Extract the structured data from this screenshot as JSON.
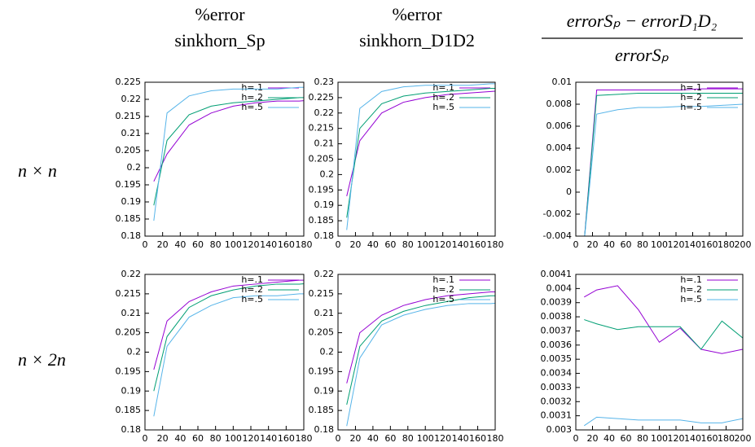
{
  "column_headers": [
    {
      "lines": [
        "%error",
        "sinkhorn_Sp"
      ]
    },
    {
      "lines": [
        "%error",
        "sinkhorn_D1D2"
      ]
    },
    {
      "numerator": "errorSₚ − errorD₁D₂",
      "denominator": "errorSₚ"
    }
  ],
  "row_labels": [
    "n × n",
    "n × 2n"
  ],
  "chart_data": [
    {
      "type": "line",
      "x": [
        10,
        25,
        50,
        75,
        100,
        125,
        150,
        175,
        200
      ],
      "xlim": [
        0,
        180
      ],
      "xticks": [
        0,
        20,
        40,
        60,
        80,
        100,
        120,
        140,
        160,
        180
      ],
      "ylim": [
        0.18,
        0.225
      ],
      "yticks": [
        0.18,
        0.185,
        0.19,
        0.195,
        0.2,
        0.205,
        0.21,
        0.215,
        0.22,
        0.225
      ],
      "legend": "top-right",
      "series": [
        {
          "name": "h=.1",
          "color": "#9400d3",
          "values": [
            0.196,
            0.204,
            0.2125,
            0.216,
            0.218,
            0.219,
            0.2195,
            0.2195,
            0.22
          ]
        },
        {
          "name": "h=.2",
          "color": "#009e73",
          "values": [
            0.189,
            0.208,
            0.2155,
            0.218,
            0.219,
            0.2195,
            0.22,
            0.2205,
            0.2205
          ]
        },
        {
          "name": "h=.5",
          "color": "#56b4e9",
          "values": [
            0.1845,
            0.216,
            0.221,
            0.2225,
            0.223,
            0.223,
            0.223,
            0.2235,
            0.2235
          ]
        }
      ]
    },
    {
      "type": "line",
      "x": [
        10,
        25,
        50,
        75,
        100,
        125,
        150,
        175,
        200
      ],
      "xlim": [
        0,
        180
      ],
      "xticks": [
        0,
        20,
        40,
        60,
        80,
        100,
        120,
        140,
        160,
        180
      ],
      "ylim": [
        0.18,
        0.23
      ],
      "yticks": [
        0.18,
        0.185,
        0.19,
        0.195,
        0.2,
        0.205,
        0.21,
        0.215,
        0.22,
        0.225,
        0.23
      ],
      "legend": "top-right",
      "series": [
        {
          "name": "h=.1",
          "color": "#9400d3",
          "values": [
            0.193,
            0.211,
            0.22,
            0.2235,
            0.225,
            0.226,
            0.2265,
            0.227,
            0.2275
          ]
        },
        {
          "name": "h=.2",
          "color": "#009e73",
          "values": [
            0.186,
            0.215,
            0.223,
            0.2255,
            0.2265,
            0.227,
            0.2275,
            0.228,
            0.228
          ]
        },
        {
          "name": "h=.5",
          "color": "#56b4e9",
          "values": [
            0.182,
            0.2215,
            0.227,
            0.2285,
            0.229,
            0.229,
            0.229,
            0.2295,
            0.2295
          ]
        }
      ]
    },
    {
      "type": "line",
      "x": [
        10,
        25,
        50,
        75,
        100,
        125,
        150,
        175,
        200
      ],
      "xlim": [
        0,
        200
      ],
      "xticks": [
        0,
        20,
        40,
        60,
        80,
        100,
        120,
        140,
        160,
        180,
        200
      ],
      "ylim": [
        -0.004,
        0.01
      ],
      "yticks": [
        -0.004,
        -0.002,
        0,
        0.002,
        0.004,
        0.006,
        0.008,
        0.01
      ],
      "legend": "top-right",
      "series": [
        {
          "name": "h=.1",
          "color": "#9400d3",
          "values": [
            -0.0045,
            0.0093,
            0.0093,
            0.0093,
            0.0093,
            0.0093,
            0.0094,
            0.0094,
            0.0094
          ]
        },
        {
          "name": "h=.2",
          "color": "#009e73",
          "values": [
            -0.0045,
            0.0088,
            0.0089,
            0.009,
            0.009,
            0.009,
            0.009,
            0.009,
            0.009
          ]
        },
        {
          "name": "h=.5",
          "color": "#56b4e9",
          "values": [
            -0.0045,
            0.0071,
            0.0075,
            0.0077,
            0.0077,
            0.0078,
            0.0078,
            0.0079,
            0.008
          ]
        }
      ]
    },
    {
      "type": "line",
      "x": [
        10,
        25,
        50,
        75,
        100,
        125,
        150,
        175,
        200
      ],
      "xlim": [
        0,
        180
      ],
      "xticks": [
        0,
        20,
        40,
        60,
        80,
        100,
        120,
        140,
        160,
        180
      ],
      "ylim": [
        0.18,
        0.22
      ],
      "yticks": [
        0.18,
        0.185,
        0.19,
        0.195,
        0.2,
        0.205,
        0.21,
        0.215,
        0.22
      ],
      "legend": "top-right",
      "series": [
        {
          "name": "h=.1",
          "color": "#9400d3",
          "values": [
            0.1955,
            0.208,
            0.213,
            0.2155,
            0.217,
            0.2175,
            0.218,
            0.2185,
            0.2185
          ]
        },
        {
          "name": "h=.2",
          "color": "#009e73",
          "values": [
            0.19,
            0.204,
            0.2115,
            0.2145,
            0.216,
            0.217,
            0.2175,
            0.2175,
            0.218
          ]
        },
        {
          "name": "h=.5",
          "color": "#56b4e9",
          "values": [
            0.1835,
            0.2015,
            0.209,
            0.212,
            0.214,
            0.2145,
            0.2145,
            0.215,
            0.215
          ]
        }
      ]
    },
    {
      "type": "line",
      "x": [
        10,
        25,
        50,
        75,
        100,
        125,
        150,
        175,
        200
      ],
      "xlim": [
        0,
        180
      ],
      "xticks": [
        0,
        20,
        40,
        60,
        80,
        100,
        120,
        140,
        160,
        180
      ],
      "ylim": [
        0.18,
        0.22
      ],
      "yticks": [
        0.18,
        0.185,
        0.19,
        0.195,
        0.2,
        0.205,
        0.21,
        0.215,
        0.22
      ],
      "legend": "top-right",
      "series": [
        {
          "name": "h=.1",
          "color": "#9400d3",
          "values": [
            0.192,
            0.205,
            0.2095,
            0.212,
            0.2135,
            0.2145,
            0.215,
            0.2155,
            0.2155
          ]
        },
        {
          "name": "h=.2",
          "color": "#009e73",
          "values": [
            0.1865,
            0.2015,
            0.208,
            0.2105,
            0.212,
            0.213,
            0.214,
            0.2145,
            0.2145
          ]
        },
        {
          "name": "h=.5",
          "color": "#56b4e9",
          "values": [
            0.181,
            0.1985,
            0.207,
            0.2095,
            0.211,
            0.212,
            0.2125,
            0.2125,
            0.213
          ]
        }
      ]
    },
    {
      "type": "line",
      "x": [
        10,
        25,
        50,
        75,
        100,
        125,
        150,
        175,
        200
      ],
      "xlim": [
        0,
        200
      ],
      "xticks": [
        0,
        20,
        40,
        60,
        80,
        100,
        120,
        140,
        160,
        180,
        200
      ],
      "ylim": [
        0.003,
        0.0041
      ],
      "yticks": [
        0.003,
        0.0031,
        0.0032,
        0.0033,
        0.0034,
        0.0035,
        0.0036,
        0.0037,
        0.0038,
        0.0039,
        0.004,
        0.0041
      ],
      "legend": "top-right",
      "series": [
        {
          "name": "h=.1",
          "color": "#9400d3",
          "values": [
            0.00394,
            0.00399,
            0.00402,
            0.00385,
            0.00362,
            0.00372,
            0.00357,
            0.00354,
            0.00357
          ]
        },
        {
          "name": "h=.2",
          "color": "#009e73",
          "values": [
            0.00378,
            0.00375,
            0.00371,
            0.00373,
            0.00373,
            0.00373,
            0.00357,
            0.00377,
            0.00365
          ]
        },
        {
          "name": "h=.5",
          "color": "#56b4e9",
          "values": [
            0.00303,
            0.00309,
            0.00308,
            0.00307,
            0.00307,
            0.00307,
            0.00305,
            0.00305,
            0.00308
          ]
        }
      ]
    }
  ]
}
